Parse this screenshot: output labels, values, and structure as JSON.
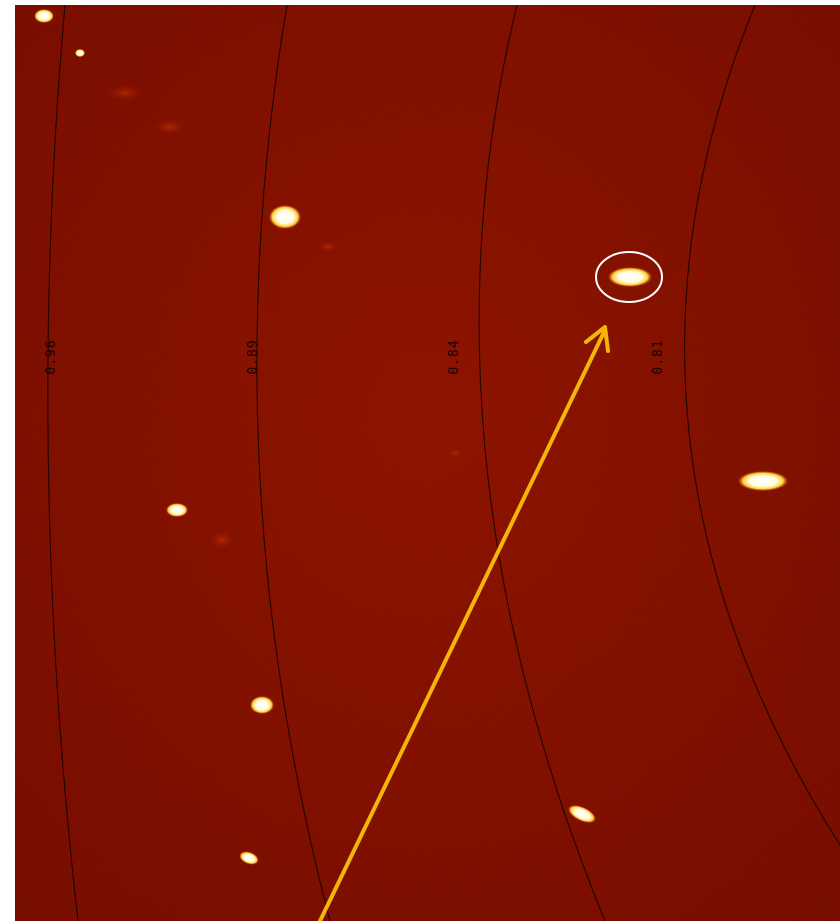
{
  "image": {
    "description_colors": {
      "background": "#7a0a00",
      "background_light": "#8f1500",
      "ring_color": "#120000",
      "spot_halo": "#ffcc33",
      "spot_core": "#ffffff",
      "highlight_circle": "#ffffff",
      "arrow": "#f5b40a"
    },
    "ring_labels": [
      "0.96",
      "0.89",
      "0.84",
      "0.81"
    ]
  }
}
